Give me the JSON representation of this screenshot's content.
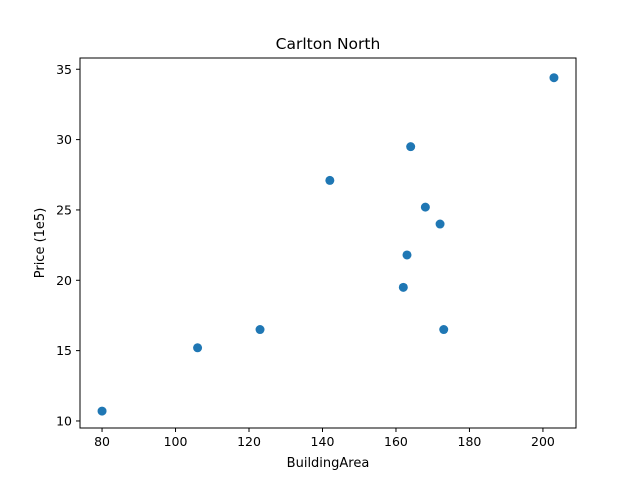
{
  "chart_data": {
    "type": "scatter",
    "title": "Carlton North",
    "xlabel": "BuildingArea",
    "ylabel": "Price (1e5)",
    "xlim": [
      74,
      209
    ],
    "ylim": [
      9.5,
      35.8
    ],
    "xticks": [
      80,
      100,
      120,
      140,
      160,
      180,
      200
    ],
    "yticks": [
      10,
      15,
      20,
      25,
      30,
      35
    ],
    "grid": false,
    "legend": "none",
    "point_color": "#1f77b4",
    "points": [
      {
        "x": 80,
        "y": 10.7
      },
      {
        "x": 106,
        "y": 15.2
      },
      {
        "x": 123,
        "y": 16.5
      },
      {
        "x": 142,
        "y": 27.1
      },
      {
        "x": 162,
        "y": 19.5
      },
      {
        "x": 163,
        "y": 21.8
      },
      {
        "x": 164,
        "y": 29.5
      },
      {
        "x": 168,
        "y": 25.2
      },
      {
        "x": 172,
        "y": 24.0
      },
      {
        "x": 173,
        "y": 16.5
      },
      {
        "x": 203,
        "y": 34.4
      }
    ]
  }
}
